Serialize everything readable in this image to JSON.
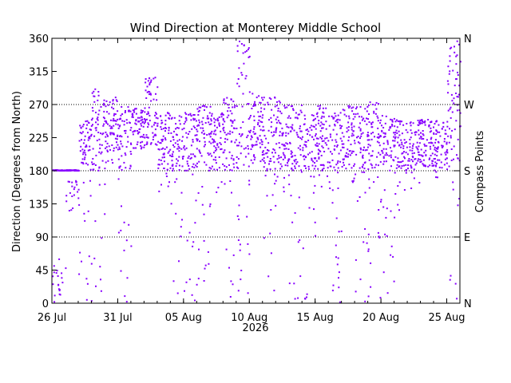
{
  "chart_data": {
    "type": "scatter",
    "title": "Wind Direction at Monterey Middle School",
    "ylabel": "Direction (Degrees from North)",
    "y2label": "Compass Points",
    "x_year_label": "2026",
    "ylim": [
      0,
      360
    ],
    "xlim": [
      "2026-07-26",
      "2026-08-26"
    ],
    "y_ticks": [
      0,
      45,
      90,
      135,
      180,
      225,
      270,
      315,
      360
    ],
    "x_ticks": [
      {
        "date": "2026-07-26",
        "label": "26 Jul"
      },
      {
        "date": "2026-07-31",
        "label": "31 Jul"
      },
      {
        "date": "2026-08-05",
        "label": "05 Aug"
      },
      {
        "date": "2026-08-10",
        "label": "10 Aug"
      },
      {
        "date": "2026-08-15",
        "label": "15 Aug"
      },
      {
        "date": "2026-08-20",
        "label": "20 Aug"
      },
      {
        "date": "2026-08-25",
        "label": "25 Aug"
      }
    ],
    "compass_points": [
      {
        "value": 0,
        "label": "N"
      },
      {
        "value": 90,
        "label": "E"
      },
      {
        "value": 180,
        "label": "S"
      },
      {
        "value": 270,
        "label": "W"
      },
      {
        "value": 360,
        "label": "N"
      }
    ],
    "reference_lines": [
      90,
      180,
      270
    ],
    "point_color": "#8800ff",
    "series": [
      {
        "values": [
          {
            "date": "2026-07-26",
            "y_min": 0,
            "y_max": 60
          },
          {
            "date": "2026-07-27",
            "y_min": 125,
            "y_max": 175
          },
          {
            "date": "2026-07-28",
            "y_min": 0,
            "y_max": 250
          },
          {
            "date": "2026-07-29",
            "y_min": 0,
            "y_max": 300
          },
          {
            "date": "2026-07-30",
            "y_min": 190,
            "y_max": 280
          },
          {
            "date": "2026-07-31",
            "y_min": 0,
            "y_max": 270
          },
          {
            "date": "2026-08-01",
            "y_min": 210,
            "y_max": 265
          },
          {
            "date": "2026-08-02",
            "y_min": 215,
            "y_max": 310
          },
          {
            "date": "2026-08-03",
            "y_min": 150,
            "y_max": 260
          },
          {
            "date": "2026-08-04",
            "y_min": 0,
            "y_max": 255
          },
          {
            "date": "2026-08-05",
            "y_min": 0,
            "y_max": 260
          },
          {
            "date": "2026-08-06",
            "y_min": 0,
            "y_max": 270
          },
          {
            "date": "2026-08-07",
            "y_min": 140,
            "y_max": 260
          },
          {
            "date": "2026-08-08",
            "y_min": 0,
            "y_max": 280
          },
          {
            "date": "2026-08-09",
            "y_min": 0,
            "y_max": 360
          },
          {
            "date": "2026-08-10",
            "y_min": 190,
            "y_max": 285
          },
          {
            "date": "2026-08-11",
            "y_min": 0,
            "y_max": 280
          },
          {
            "date": "2026-08-12",
            "y_min": 150,
            "y_max": 275
          },
          {
            "date": "2026-08-13",
            "y_min": 0,
            "y_max": 270
          },
          {
            "date": "2026-08-14",
            "y_min": 0,
            "y_max": 265
          },
          {
            "date": "2026-08-15",
            "y_min": 150,
            "y_max": 270
          },
          {
            "date": "2026-08-16",
            "y_min": 0,
            "y_max": 260
          },
          {
            "date": "2026-08-17",
            "y_min": 160,
            "y_max": 270
          },
          {
            "date": "2026-08-18",
            "y_min": 0,
            "y_max": 270
          },
          {
            "date": "2026-08-19",
            "y_min": 0,
            "y_max": 280
          },
          {
            "date": "2026-08-20",
            "y_min": 0,
            "y_max": 255
          },
          {
            "date": "2026-08-21",
            "y_min": 120,
            "y_max": 250
          },
          {
            "date": "2026-08-22",
            "y_min": 150,
            "y_max": 250
          },
          {
            "date": "2026-08-23",
            "y_min": 185,
            "y_max": 250
          },
          {
            "date": "2026-08-24",
            "y_min": 170,
            "y_max": 250
          },
          {
            "date": "2026-08-25",
            "y_min": 0,
            "y_max": 360
          },
          {
            "date": "2026-08-26",
            "y_min": 180,
            "y_max": 255
          }
        ]
      }
    ]
  }
}
